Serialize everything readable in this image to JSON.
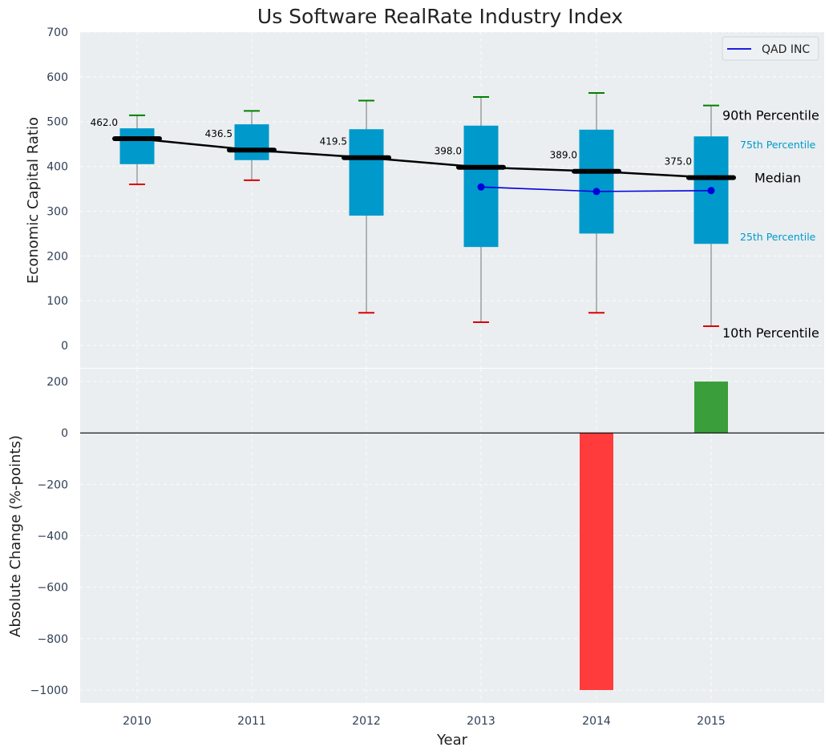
{
  "chart_data": [
    {
      "type": "box",
      "title": "Us Software RealRate Industry Index",
      "ylabel": "Economic Capital Ratio",
      "ylim": [
        -50,
        700
      ],
      "yticks": [
        0,
        100,
        200,
        300,
        400,
        500,
        600,
        700
      ],
      "categories": [
        "2010",
        "2011",
        "2012",
        "2013",
        "2014",
        "2015"
      ],
      "p10": [
        360,
        369,
        73,
        52,
        73,
        43
      ],
      "p25": [
        405,
        414,
        290,
        220,
        250,
        227
      ],
      "median": [
        462.0,
        436.5,
        419.5,
        398.0,
        389.0,
        375.0
      ],
      "median_labels": [
        "462.0",
        "436.5",
        "419.5",
        "398.0",
        "389.0",
        "375.0"
      ],
      "p75": [
        485,
        494,
        483,
        491,
        482,
        467
      ],
      "p90": [
        514,
        524,
        547,
        555,
        564,
        536
      ],
      "series": [
        {
          "name": "QAD INC",
          "color": "#0000dd",
          "values": [
            null,
            null,
            null,
            354,
            344,
            346
          ]
        }
      ],
      "annotations": {
        "p90": "90th Percentile",
        "p75": "75th Percentile",
        "median": "Median",
        "p25": "25th Percentile",
        "p10": "10th Percentile"
      },
      "legend": {
        "position": "top-right",
        "entries": [
          "QAD INC"
        ]
      },
      "colors": {
        "box": "#0099cc",
        "median": "#000000",
        "p90_cap": "#008000",
        "p10_cap": "#dd0000",
        "whisker": "#8a8a8a",
        "panel_bg": "#eaeef0"
      },
      "grid": true
    },
    {
      "type": "bar",
      "xlabel": "Year",
      "ylabel": "Absolute Change (%-points)",
      "categories": [
        "2010",
        "2011",
        "2012",
        "2013",
        "2014",
        "2015"
      ],
      "values": [
        0,
        0,
        0,
        0,
        -1000,
        200
      ],
      "ylim": [
        -1050,
        250
      ],
      "yticks": [
        200,
        0,
        -200,
        -400,
        -600,
        -800,
        -1000
      ],
      "ytick_labels": [
        "200",
        "0",
        "−200",
        "−400",
        "−600",
        "−800",
        "−1000"
      ],
      "colors": {
        "positive": "#3a9e3a",
        "negative": "#ff3b3b",
        "zero_line": "#000000"
      },
      "grid": true
    }
  ]
}
